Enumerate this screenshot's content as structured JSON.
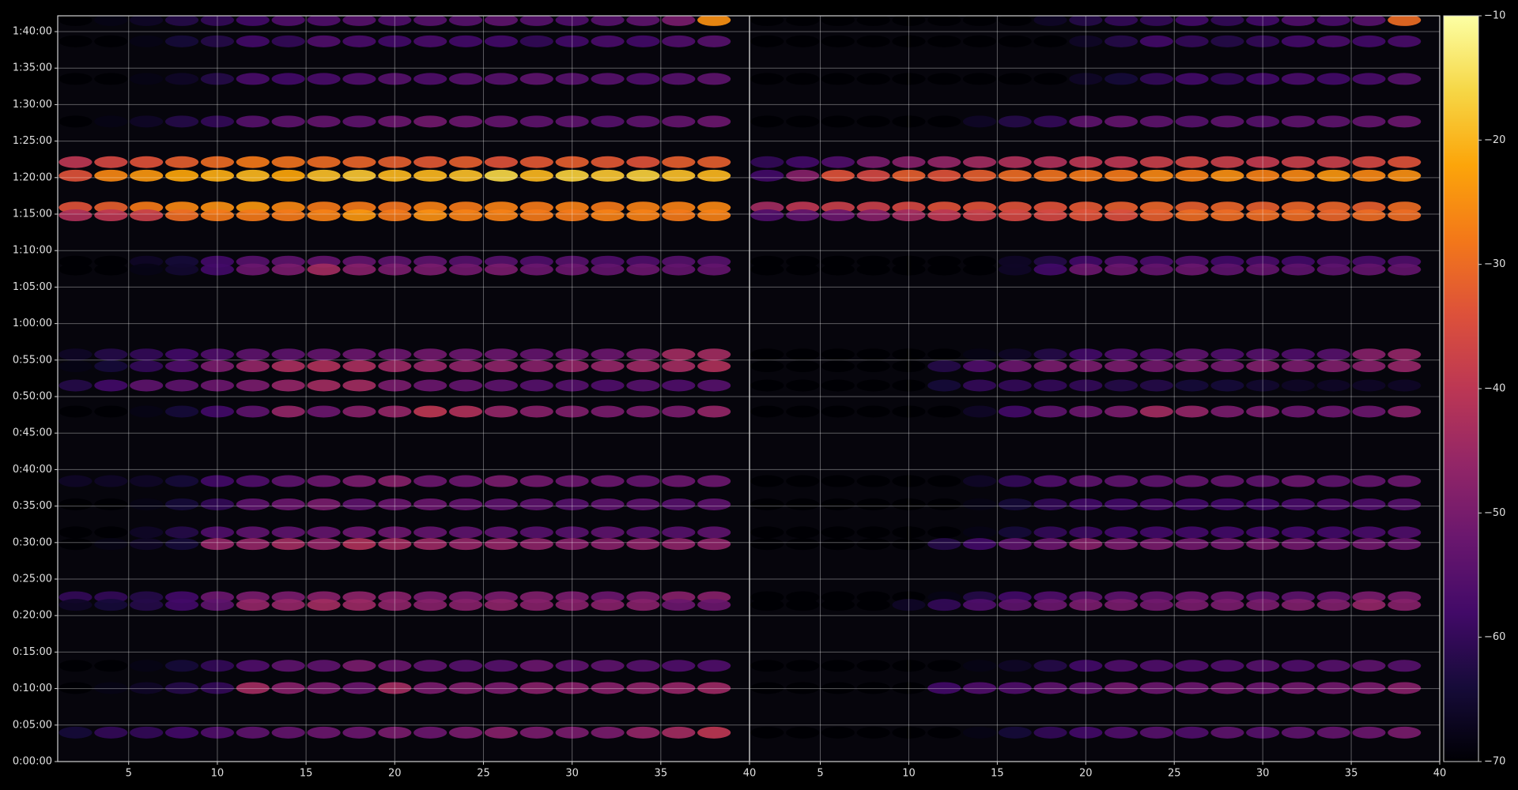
{
  "chart_data": [
    {
      "type": "heatmap",
      "colormap": "inferno",
      "grid": true,
      "x": [
        2,
        4,
        6,
        8,
        10,
        12,
        14,
        16,
        18,
        20,
        22,
        24,
        26,
        28,
        30,
        32,
        34,
        36,
        38
      ],
      "y": [
        6095,
        5920,
        5611,
        5261,
        4927,
        4816,
        4554,
        4490,
        4109,
        4045,
        3346,
        3250,
        3091,
        2877,
        2305,
        2114,
        1884,
        1788,
        1351,
        1288,
        787,
        604,
        238
      ],
      "xlim": [
        1,
        40
      ],
      "ylim": [
        0,
        6130
      ],
      "xticks": [
        5,
        10,
        15,
        20,
        25,
        30,
        35,
        40
      ],
      "yticks": [
        {
          "value": 0,
          "label": "0:00:00"
        },
        {
          "value": 300,
          "label": "0:05:00"
        },
        {
          "value": 600,
          "label": "0:10:00"
        },
        {
          "value": 900,
          "label": "0:15:00"
        },
        {
          "value": 1200,
          "label": "0:20:00"
        },
        {
          "value": 1500,
          "label": "0:25:00"
        },
        {
          "value": 1800,
          "label": "0:30:00"
        },
        {
          "value": 2100,
          "label": "0:35:00"
        },
        {
          "value": 2400,
          "label": "0:40:00"
        },
        {
          "value": 2700,
          "label": "0:45:00"
        },
        {
          "value": 3000,
          "label": "0:50:00"
        },
        {
          "value": 3300,
          "label": "0:55:00"
        },
        {
          "value": 3600,
          "label": "1:00:00"
        },
        {
          "value": 3900,
          "label": "1:05:00"
        },
        {
          "value": 4200,
          "label": "1:10:00"
        },
        {
          "value": 4500,
          "label": "1:15:00"
        },
        {
          "value": 4800,
          "label": "1:20:00"
        },
        {
          "value": 5100,
          "label": "1:25:00"
        },
        {
          "value": 5400,
          "label": "1:30:00"
        },
        {
          "value": 5700,
          "label": "1:35:00"
        },
        {
          "value": 6000,
          "label": "1:40:00"
        }
      ],
      "values": [
        [
          -70,
          -68,
          -66,
          -62,
          -60,
          -58,
          -56,
          -56,
          -55,
          -56,
          -55,
          -55,
          -54,
          -55,
          -56,
          -55,
          -54,
          -50,
          -25
        ],
        [
          -70,
          -70,
          -68,
          -64,
          -62,
          -58,
          -60,
          -56,
          -57,
          -58,
          -57,
          -58,
          -58,
          -60,
          -58,
          -57,
          -58,
          -56,
          -55
        ],
        [
          -70,
          -70,
          -68,
          -66,
          -62,
          -57,
          -58,
          -57,
          -56,
          -55,
          -56,
          -55,
          -55,
          -54,
          -55,
          -55,
          -56,
          -55,
          -54
        ],
        [
          -70,
          -68,
          -66,
          -62,
          -60,
          -55,
          -54,
          -53,
          -54,
          -52,
          -51,
          -52,
          -53,
          -54,
          -54,
          -55,
          -54,
          -53,
          -52
        ],
        [
          -40,
          -36,
          -34,
          -32,
          -30,
          -28,
          -29,
          -30,
          -31,
          -32,
          -33,
          -32,
          -34,
          -33,
          -32,
          -33,
          -34,
          -32,
          -32
        ],
        [
          -34,
          -26,
          -24,
          -22,
          -21,
          -20,
          -22,
          -19,
          -18,
          -20,
          -20,
          -19,
          -16,
          -20,
          -17,
          -18,
          -17,
          -19,
          -20
        ],
        [
          -34,
          -32,
          -28,
          -26,
          -25,
          -24,
          -26,
          -28,
          -28,
          -29,
          -27,
          -28,
          -27,
          -28,
          -27,
          -28,
          -27,
          -27,
          -26
        ],
        [
          -42,
          -40,
          -38,
          -30,
          -28,
          -28,
          -28,
          -27,
          -24,
          -28,
          -25,
          -27,
          -27,
          -28,
          -28,
          -27,
          -27,
          -28,
          -27
        ],
        [
          -70,
          -70,
          -66,
          -64,
          -58,
          -55,
          -54,
          -53,
          -53,
          -54,
          -54,
          -55,
          -55,
          -56,
          -55,
          -56,
          -56,
          -55,
          -55
        ],
        [
          -70,
          -70,
          -68,
          -65,
          -58,
          -52,
          -50,
          -44,
          -48,
          -50,
          -50,
          -51,
          -50,
          -52,
          -52,
          -53,
          -52,
          -53,
          -53
        ],
        [
          -66,
          -62,
          -60,
          -58,
          -56,
          -54,
          -54,
          -53,
          -52,
          -52,
          -51,
          -52,
          -52,
          -53,
          -52,
          -52,
          -50,
          -44,
          -44
        ],
        [
          -68,
          -64,
          -60,
          -56,
          -50,
          -46,
          -43,
          -42,
          -43,
          -45,
          -46,
          -47,
          -47,
          -48,
          -46,
          -46,
          -45,
          -44,
          -42
        ],
        [
          -62,
          -58,
          -54,
          -54,
          -52,
          -50,
          -46,
          -44,
          -44,
          -50,
          -52,
          -53,
          -54,
          -55,
          -55,
          -56,
          -55,
          -56,
          -55
        ],
        [
          -70,
          -70,
          -68,
          -64,
          -58,
          -54,
          -46,
          -52,
          -48,
          -46,
          -40,
          -42,
          -46,
          -48,
          -49,
          -50,
          -50,
          -50,
          -46
        ],
        [
          -66,
          -66,
          -66,
          -64,
          -58,
          -56,
          -54,
          -52,
          -50,
          -48,
          -52,
          -52,
          -50,
          -51,
          -52,
          -52,
          -53,
          -52,
          -52
        ],
        [
          -70,
          -70,
          -68,
          -64,
          -60,
          -54,
          -52,
          -50,
          -54,
          -52,
          -52,
          -53,
          -54,
          -54,
          -55,
          -54,
          -54,
          -55,
          -54
        ],
        [
          -70,
          -70,
          -66,
          -62,
          -56,
          -54,
          -54,
          -53,
          -52,
          -52,
          -53,
          -54,
          -54,
          -55,
          -55,
          -54,
          -55,
          -55,
          -54
        ],
        [
          -70,
          -68,
          -66,
          -64,
          -46,
          -46,
          -44,
          -46,
          -42,
          -44,
          -45,
          -46,
          -46,
          -47,
          -48,
          -48,
          -47,
          -47,
          -47
        ],
        [
          -60,
          -60,
          -62,
          -58,
          -52,
          -50,
          -50,
          -48,
          -47,
          -48,
          -50,
          -50,
          -50,
          -49,
          -50,
          -52,
          -50,
          -48,
          -48
        ],
        [
          -66,
          -64,
          -62,
          -58,
          -54,
          -46,
          -46,
          -44,
          -45,
          -47,
          -48,
          -48,
          -47,
          -48,
          -48,
          -48,
          -48,
          -52,
          -52
        ],
        [
          -70,
          -70,
          -68,
          -64,
          -60,
          -56,
          -54,
          -54,
          -50,
          -52,
          -54,
          -55,
          -55,
          -52,
          -54,
          -54,
          -55,
          -56,
          -56
        ],
        [
          -70,
          -68,
          -66,
          -62,
          -60,
          -44,
          -48,
          -50,
          -52,
          -44,
          -50,
          -49,
          -50,
          -48,
          -48,
          -48,
          -47,
          -46,
          -45
        ],
        [
          -64,
          -60,
          -60,
          -58,
          -56,
          -54,
          -53,
          -52,
          -52,
          -50,
          -52,
          -50,
          -48,
          -50,
          -50,
          -50,
          -46,
          -44,
          -40
        ]
      ]
    },
    {
      "type": "heatmap",
      "colormap": "inferno",
      "grid": true,
      "x": [
        2,
        4,
        6,
        8,
        10,
        12,
        14,
        16,
        18,
        20,
        22,
        24,
        26,
        28,
        30,
        32,
        34,
        36,
        38
      ],
      "y": [
        6095,
        5920,
        5611,
        5261,
        4927,
        4816,
        4554,
        4490,
        4109,
        4045,
        3346,
        3250,
        3091,
        2877,
        2305,
        2114,
        1884,
        1788,
        1351,
        1288,
        787,
        604,
        238
      ],
      "xlim": [
        1,
        40
      ],
      "ylim": [
        0,
        6130
      ],
      "xticks": [
        5,
        10,
        15,
        20,
        25,
        30,
        35,
        40
      ],
      "values": [
        [
          -70,
          -70,
          -70,
          -70,
          -70,
          -70,
          -70,
          -70,
          -66,
          -62,
          -60,
          -60,
          -58,
          -60,
          -58,
          -56,
          -57,
          -55,
          -30
        ],
        [
          -70,
          -70,
          -70,
          -70,
          -70,
          -70,
          -70,
          -70,
          -70,
          -66,
          -62,
          -58,
          -60,
          -62,
          -60,
          -58,
          -57,
          -58,
          -57
        ],
        [
          -70,
          -70,
          -70,
          -70,
          -70,
          -70,
          -70,
          -70,
          -70,
          -66,
          -64,
          -60,
          -58,
          -60,
          -58,
          -57,
          -58,
          -57,
          -55
        ],
        [
          -70,
          -70,
          -70,
          -70,
          -70,
          -70,
          -66,
          -62,
          -60,
          -54,
          -53,
          -54,
          -55,
          -54,
          -55,
          -54,
          -54,
          -53,
          -52
        ],
        [
          -60,
          -58,
          -56,
          -50,
          -48,
          -46,
          -44,
          -42,
          -42,
          -40,
          -40,
          -38,
          -37,
          -38,
          -39,
          -38,
          -38,
          -36,
          -34
        ],
        [
          -58,
          -48,
          -34,
          -36,
          -32,
          -34,
          -32,
          -30,
          -29,
          -28,
          -28,
          -26,
          -27,
          -25,
          -27,
          -26,
          -24,
          -26,
          -25
        ],
        [
          -44,
          -40,
          -38,
          -38,
          -36,
          -34,
          -34,
          -34,
          -34,
          -33,
          -32,
          -31,
          -32,
          -31,
          -32,
          -31,
          -31,
          -32,
          -30
        ],
        [
          -56,
          -54,
          -52,
          -48,
          -44,
          -40,
          -38,
          -36,
          -36,
          -34,
          -35,
          -32,
          -30,
          -30,
          -30,
          -30,
          -31,
          -30,
          -30
        ],
        [
          -70,
          -70,
          -70,
          -70,
          -70,
          -70,
          -70,
          -66,
          -62,
          -58,
          -56,
          -57,
          -56,
          -58,
          -57,
          -58,
          -56,
          -57,
          -56
        ],
        [
          -70,
          -70,
          -70,
          -70,
          -70,
          -70,
          -70,
          -66,
          -58,
          -52,
          -52,
          -53,
          -52,
          -54,
          -53,
          -54,
          -54,
          -53,
          -53
        ],
        [
          -70,
          -70,
          -70,
          -70,
          -70,
          -70,
          -68,
          -66,
          -62,
          -58,
          -56,
          -56,
          -54,
          -56,
          -55,
          -56,
          -55,
          -48,
          -46
        ],
        [
          -70,
          -70,
          -70,
          -70,
          -70,
          -62,
          -56,
          -52,
          -50,
          -50,
          -50,
          -51,
          -50,
          -51,
          -49,
          -50,
          -49,
          -48,
          -46
        ],
        [
          -70,
          -70,
          -70,
          -70,
          -70,
          -64,
          -60,
          -60,
          -60,
          -60,
          -62,
          -62,
          -64,
          -64,
          -65,
          -66,
          -66,
          -66,
          -66
        ],
        [
          -70,
          -70,
          -70,
          -70,
          -70,
          -70,
          -66,
          -58,
          -54,
          -52,
          -50,
          -44,
          -46,
          -50,
          -50,
          -52,
          -52,
          -52,
          -48
        ],
        [
          -70,
          -70,
          -70,
          -70,
          -70,
          -70,
          -66,
          -60,
          -56,
          -54,
          -54,
          -54,
          -53,
          -53,
          -54,
          -52,
          -54,
          -53,
          -52
        ],
        [
          -70,
          -70,
          -70,
          -70,
          -70,
          -70,
          -68,
          -64,
          -60,
          -58,
          -58,
          -57,
          -58,
          -58,
          -58,
          -57,
          -56,
          -56,
          -55
        ],
        [
          -70,
          -70,
          -70,
          -70,
          -70,
          -70,
          -68,
          -64,
          -60,
          -59,
          -58,
          -58,
          -58,
          -58,
          -58,
          -58,
          -58,
          -57,
          -56
        ],
        [
          -70,
          -70,
          -70,
          -70,
          -70,
          -62,
          -58,
          -54,
          -52,
          -48,
          -50,
          -50,
          -51,
          -51,
          -50,
          -51,
          -52,
          -51,
          -52
        ],
        [
          -70,
          -70,
          -70,
          -70,
          -70,
          -68,
          -62,
          -58,
          -56,
          -54,
          -54,
          -53,
          -52,
          -52,
          -54,
          -54,
          -53,
          -50,
          -50
        ],
        [
          -70,
          -70,
          -70,
          -70,
          -66,
          -60,
          -56,
          -54,
          -52,
          -50,
          -50,
          -51,
          -50,
          -50,
          -50,
          -49,
          -49,
          -46,
          -48
        ],
        [
          -70,
          -70,
          -70,
          -70,
          -70,
          -70,
          -68,
          -66,
          -62,
          -58,
          -56,
          -56,
          -56,
          -56,
          -55,
          -56,
          -55,
          -54,
          -55
        ],
        [
          -70,
          -70,
          -70,
          -70,
          -70,
          -58,
          -56,
          -56,
          -54,
          -54,
          -51,
          -52,
          -52,
          -51,
          -52,
          -51,
          -51,
          -50,
          -48
        ],
        [
          -70,
          -70,
          -70,
          -70,
          -70,
          -70,
          -68,
          -64,
          -60,
          -58,
          -56,
          -55,
          -56,
          -54,
          -55,
          -54,
          -53,
          -52,
          -50
        ]
      ],
      "colorbar": {
        "lim": [
          -70,
          -10
        ],
        "ticks": [
          {
            "value": -10,
            "label": "−10"
          },
          {
            "value": -20,
            "label": "−20"
          },
          {
            "value": -30,
            "label": "−30"
          },
          {
            "value": -40,
            "label": "−40"
          },
          {
            "value": -50,
            "label": "−50"
          },
          {
            "value": -60,
            "label": "−60"
          },
          {
            "value": -70,
            "label": "−70"
          }
        ]
      }
    }
  ]
}
